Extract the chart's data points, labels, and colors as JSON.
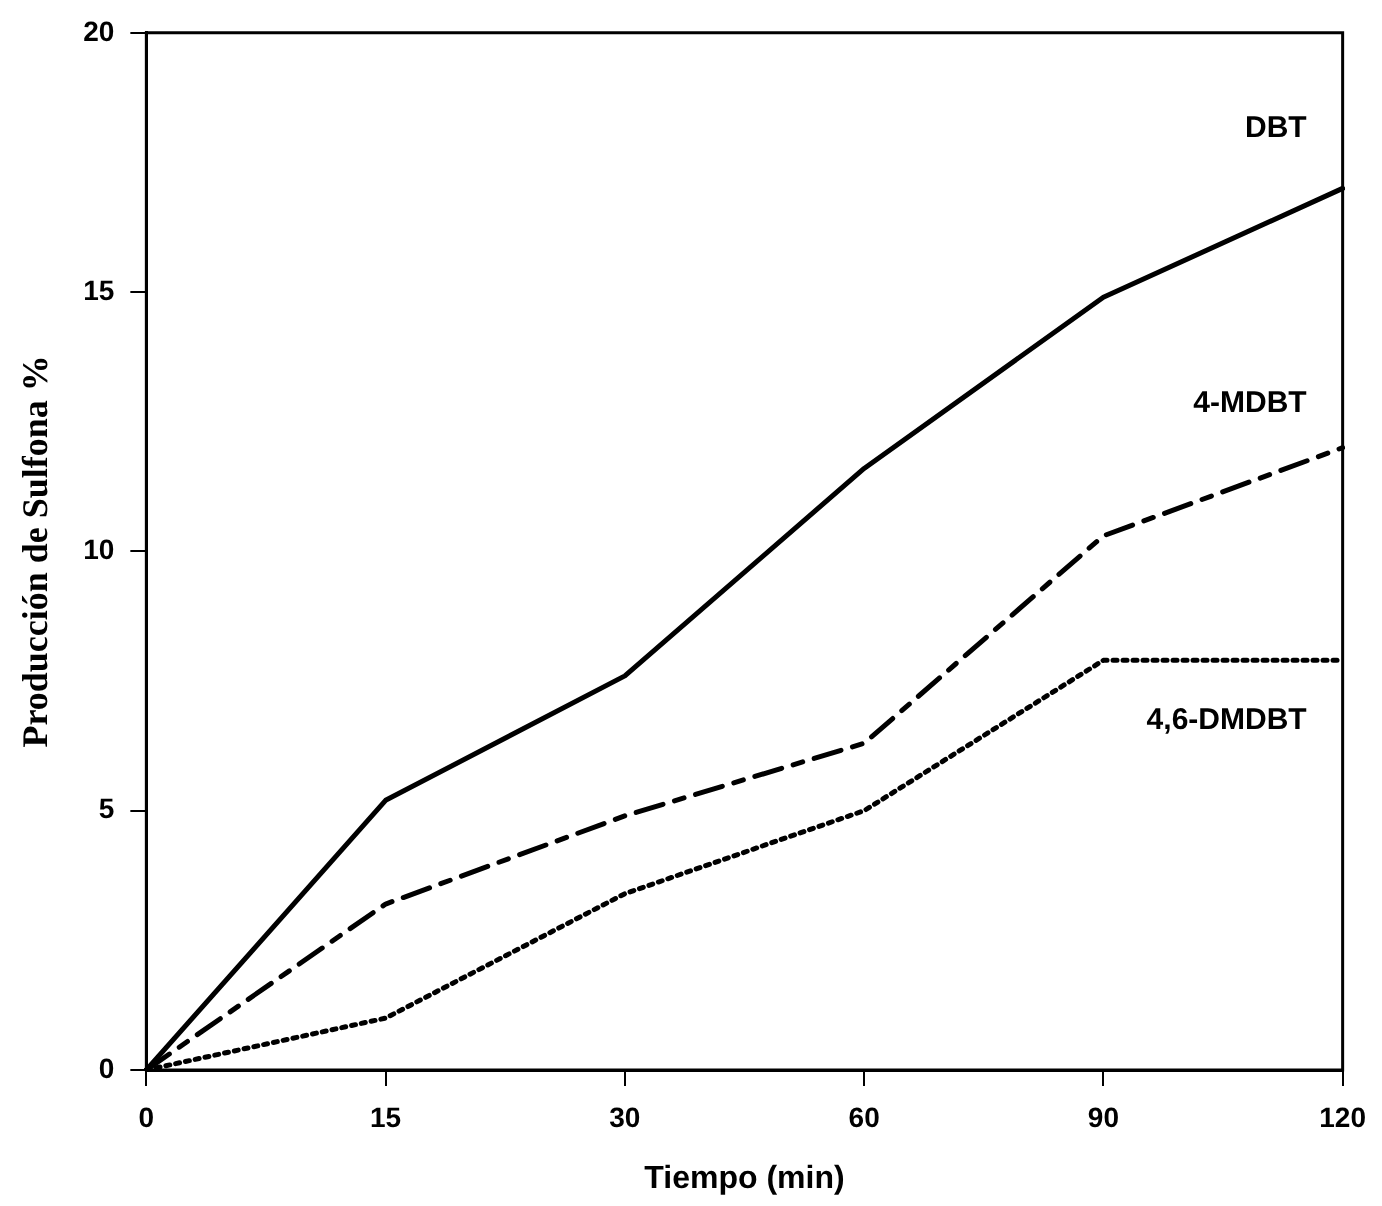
{
  "chart_data": {
    "type": "line",
    "xlabel": "Tiempo (min)",
    "ylabel": "Producción de Sulfona %",
    "categories": [
      "0",
      "15",
      "30",
      "60",
      "90",
      "120"
    ],
    "ylim": [
      0,
      20
    ],
    "yticks": [
      0,
      5,
      10,
      15,
      20
    ],
    "grid": false,
    "legend": false,
    "marker": "none",
    "series": [
      {
        "name": "DBT",
        "color": "#000000",
        "line_style": "solid",
        "values": [
          0,
          5.2,
          7.6,
          11.6,
          14.9,
          17
        ]
      },
      {
        "name": "4-MDBT",
        "color": "#000000",
        "line_style": "dashed",
        "values": [
          0,
          3.2,
          4.9,
          6.3,
          10.3,
          12
        ]
      },
      {
        "name": "4,6-DMDBT",
        "color": "#000000",
        "line_style": "dotted",
        "values": [
          0,
          1.0,
          3.4,
          5.0,
          7.9,
          7.9
        ]
      }
    ]
  }
}
